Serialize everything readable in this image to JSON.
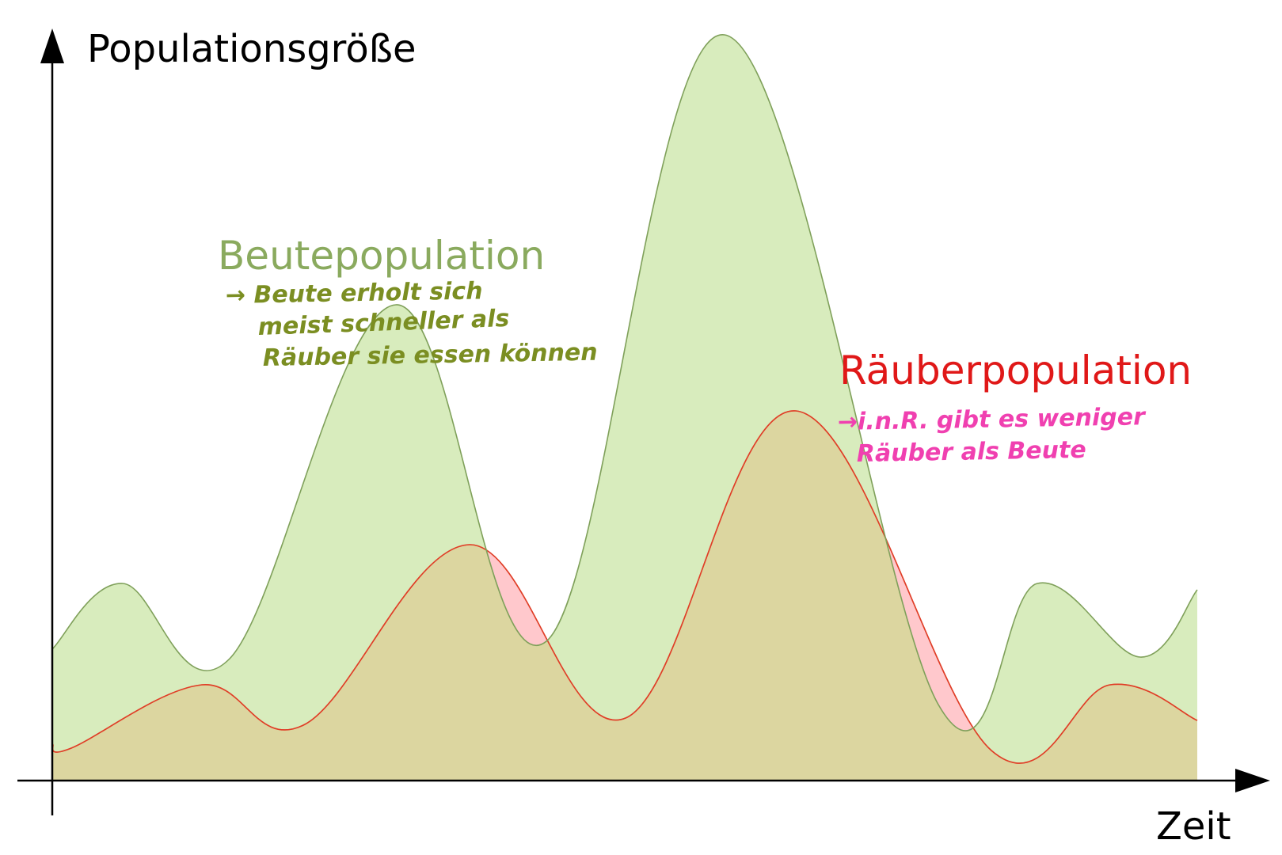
{
  "diagram": {
    "y_axis_label": "Populationsgröße",
    "x_axis_label": "Zeit",
    "prey": {
      "label": "Beutepopulation",
      "color": "#8aaa5e",
      "stroke": "#7fa05a",
      "fill": "#d8ecbd",
      "note_lines": [
        "→ Beute erholt sich",
        "meist schneller als",
        "Räuber sie essen können"
      ],
      "note_color": "#7b8e22"
    },
    "predator": {
      "label": "Räuberpopulation",
      "color": "#e01818",
      "stroke": "#e06a3a",
      "fill": "#ffc8cc",
      "note_lines": [
        "→i.n.R. gibt es weniger",
        "Räuber als Beute"
      ],
      "note_color": "#f040b0"
    },
    "overlap_fill": "#dcd6a0"
  }
}
